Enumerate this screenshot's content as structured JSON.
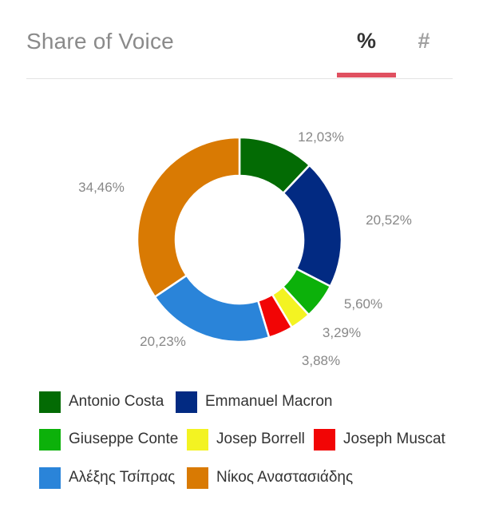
{
  "header": {
    "title": "Share of Voice",
    "tabs": [
      {
        "label": "%",
        "active": true
      },
      {
        "label": "#",
        "active": false
      }
    ],
    "accent_color": "#e05060"
  },
  "chart_data": {
    "type": "pie",
    "donut": true,
    "series": [
      {
        "name": "Antonio Costa",
        "value": 12.03,
        "label": "12,03%",
        "color": "#036b04"
      },
      {
        "name": "Emmanuel Macron",
        "value": 20.52,
        "label": "20,52%",
        "color": "#022a82"
      },
      {
        "name": "Giuseppe Conte",
        "value": 5.6,
        "label": "5,60%",
        "color": "#0cb10a"
      },
      {
        "name": "Josep Borrell",
        "value": 3.29,
        "label": "3,29%",
        "color": "#f3f322"
      },
      {
        "name": "Joseph Muscat",
        "value": 3.88,
        "label": "3,88%",
        "color": "#f20505"
      },
      {
        "name": "Αλέξης Τσίπρας",
        "value": 20.23,
        "label": "20,23%",
        "color": "#2a84d9"
      },
      {
        "name": "Νίκος Αναστασιάδης",
        "value": 34.46,
        "label": "34,46%",
        "color": "#d97a03"
      }
    ]
  }
}
